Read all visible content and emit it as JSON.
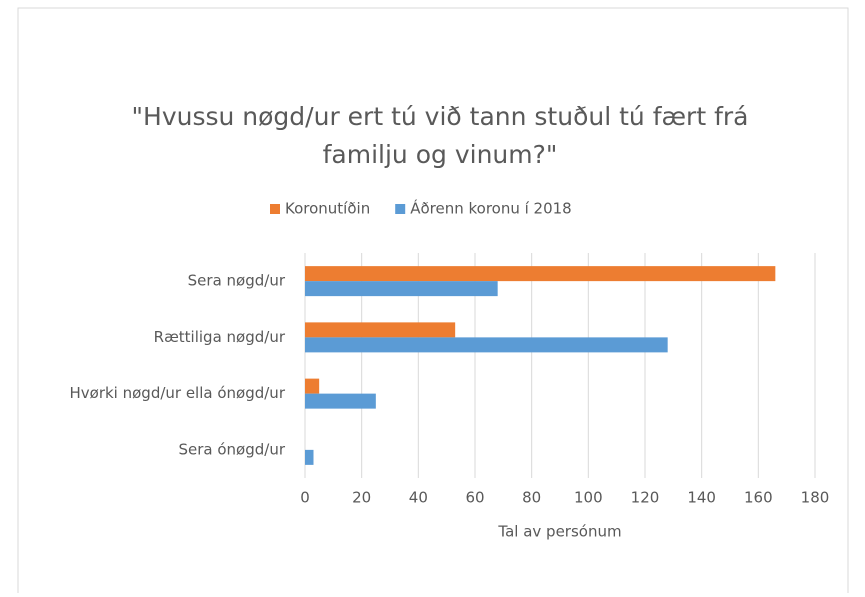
{
  "chart_data": {
    "type": "hbar",
    "title": "\"Hvussu nøgd/ur ert tú við tann stuðul tú fært frá",
    "title_line2": "familju og vinum?\"",
    "x_label": "Tal av persónum",
    "categories": [
      "Sera nøgd/ur",
      "Rættiliga nøgd/ur",
      "Hvørki nøgd/ur ella ónøgd/ur",
      "Sera ónøgd/ur"
    ],
    "series": [
      {
        "name": "Koronutíðin",
        "color": "#ed7d31",
        "values": [
          166,
          53,
          5,
          0
        ]
      },
      {
        "name": "Áðrenn koronu í 2018",
        "color": "#5b9bd5",
        "values": [
          68,
          128,
          25,
          3
        ]
      }
    ],
    "xlim": [
      0,
      180
    ],
    "xticks": [
      0,
      20,
      40,
      60,
      80,
      100,
      120,
      140,
      160,
      180
    ],
    "grid": true,
    "legend": "top"
  }
}
